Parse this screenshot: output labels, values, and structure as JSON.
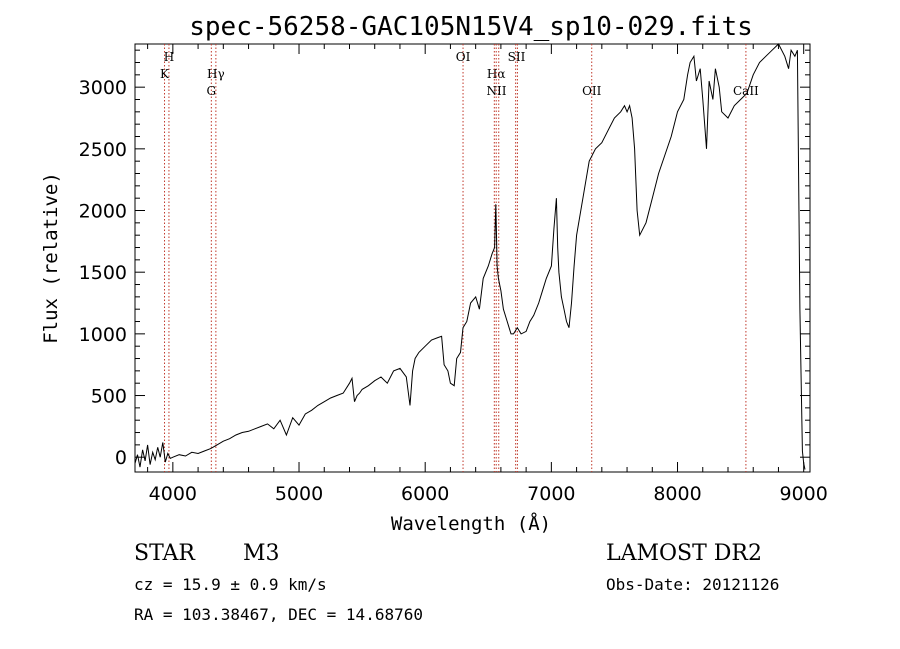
{
  "chart_data": {
    "type": "line",
    "title": "spec-56258-GAC105N15V4_sp10-029.fits",
    "xlabel": "Wavelength (Å)",
    "ylabel": "Flux (relative)",
    "xlim": [
      3700,
      9050
    ],
    "ylim": [
      -120,
      3350
    ],
    "xticks": [
      4000,
      5000,
      6000,
      7000,
      8000,
      9000
    ],
    "yticks": [
      0,
      500,
      1000,
      1500,
      2000,
      2500,
      3000
    ],
    "grid": false,
    "series": [
      {
        "x": [
          3700,
          3720,
          3740,
          3760,
          3780,
          3800,
          3820,
          3840,
          3860,
          3880,
          3900,
          3920,
          3940,
          3960,
          3980,
          4000,
          4050,
          4100,
          4150,
          4200,
          4250,
          4300,
          4350,
          4400,
          4450,
          4500,
          4550,
          4600,
          4650,
          4700,
          4750,
          4800,
          4850,
          4900,
          4950,
          5000,
          5050,
          5100,
          5150,
          5200,
          5250,
          5300,
          5350,
          5400,
          5420,
          5440,
          5460,
          5480,
          5500,
          5550,
          5600,
          5650,
          5700,
          5750,
          5800,
          5850,
          5880,
          5900,
          5920,
          5950,
          6000,
          6050,
          6100,
          6130,
          6150,
          6180,
          6200,
          6230,
          6250,
          6280,
          6300,
          6330,
          6360,
          6400,
          6430,
          6460,
          6500,
          6530,
          6550,
          6560,
          6565,
          6570,
          6580,
          6600,
          6620,
          6650,
          6680,
          6700,
          6730,
          6760,
          6800,
          6830,
          6860,
          6900,
          6930,
          6960,
          7000,
          7020,
          7040,
          7050,
          7060,
          7080,
          7100,
          7120,
          7140,
          7160,
          7180,
          7200,
          7250,
          7300,
          7350,
          7400,
          7450,
          7500,
          7550,
          7580,
          7600,
          7620,
          7640,
          7660,
          7680,
          7700,
          7750,
          7800,
          7850,
          7900,
          7950,
          8000,
          8050,
          8080,
          8100,
          8130,
          8150,
          8180,
          8200,
          8230,
          8250,
          8280,
          8300,
          8330,
          8350,
          8400,
          8450,
          8500,
          8550,
          8600,
          8650,
          8700,
          8750,
          8800,
          8850,
          8880,
          8900,
          8930,
          8950,
          8970,
          8990,
          9000,
          9010
        ],
        "y": [
          -50,
          20,
          -80,
          60,
          -30,
          100,
          -60,
          40,
          -20,
          80,
          0,
          120,
          -40,
          30,
          -10,
          0,
          20,
          10,
          40,
          30,
          50,
          70,
          100,
          130,
          150,
          180,
          200,
          210,
          230,
          250,
          270,
          230,
          300,
          180,
          320,
          260,
          350,
          380,
          420,
          450,
          480,
          500,
          520,
          600,
          640,
          450,
          500,
          520,
          550,
          580,
          620,
          650,
          600,
          700,
          720,
          650,
          420,
          700,
          800,
          850,
          900,
          950,
          970,
          980,
          750,
          700,
          600,
          580,
          800,
          850,
          1050,
          1100,
          1250,
          1300,
          1200,
          1450,
          1550,
          1650,
          1700,
          2050,
          1800,
          1550,
          1450,
          1350,
          1200,
          1100,
          1000,
          1000,
          1050,
          1000,
          1020,
          1100,
          1150,
          1250,
          1350,
          1450,
          1550,
          1850,
          2100,
          1700,
          1500,
          1300,
          1200,
          1100,
          1050,
          1250,
          1550,
          1800,
          2100,
          2400,
          2500,
          2550,
          2650,
          2750,
          2800,
          2850,
          2800,
          2850,
          2750,
          2500,
          2000,
          1800,
          1900,
          2100,
          2300,
          2450,
          2600,
          2800,
          2900,
          3100,
          3200,
          3250,
          3050,
          3150,
          2900,
          2500,
          3050,
          2900,
          3150,
          3000,
          2800,
          2750,
          2850,
          2900,
          2950,
          3100,
          3200,
          3250,
          3300,
          3350,
          3250,
          3150,
          3300,
          3250,
          3300,
          1200,
          50,
          -50,
          -100
        ]
      }
    ],
    "line_markers": [
      {
        "label": "H",
        "row": 1,
        "lines": [
          3969
        ]
      },
      {
        "label": "K",
        "row": 2,
        "lines": [
          3934
        ]
      },
      {
        "label": "Hγ",
        "row": 2,
        "lines": [
          4341
        ]
      },
      {
        "label": "G",
        "row": 3,
        "lines": [
          4305
        ]
      },
      {
        "label": "OI",
        "row": 1,
        "lines": [
          6300
        ]
      },
      {
        "label": "Hα",
        "row": 2,
        "lines": [
          6563
        ]
      },
      {
        "label": "NII",
        "row": 3,
        "lines": [
          6548,
          6583
        ]
      },
      {
        "label": "SII",
        "row": 1,
        "lines": [
          6717,
          6731
        ]
      },
      {
        "label": "OII",
        "row": 3,
        "lines": [
          7320
        ]
      },
      {
        "label": "CaII",
        "row": 3,
        "lines": [
          8542
        ]
      }
    ]
  },
  "info": {
    "object_class": "STAR",
    "subclass": "M3",
    "survey": "LAMOST DR2",
    "cz": "cz = 15.9 ± 0.9 km/s",
    "obs_date": "Obs-Date: 20121126",
    "coords": "RA = 103.38467, DEC =  14.68760"
  }
}
